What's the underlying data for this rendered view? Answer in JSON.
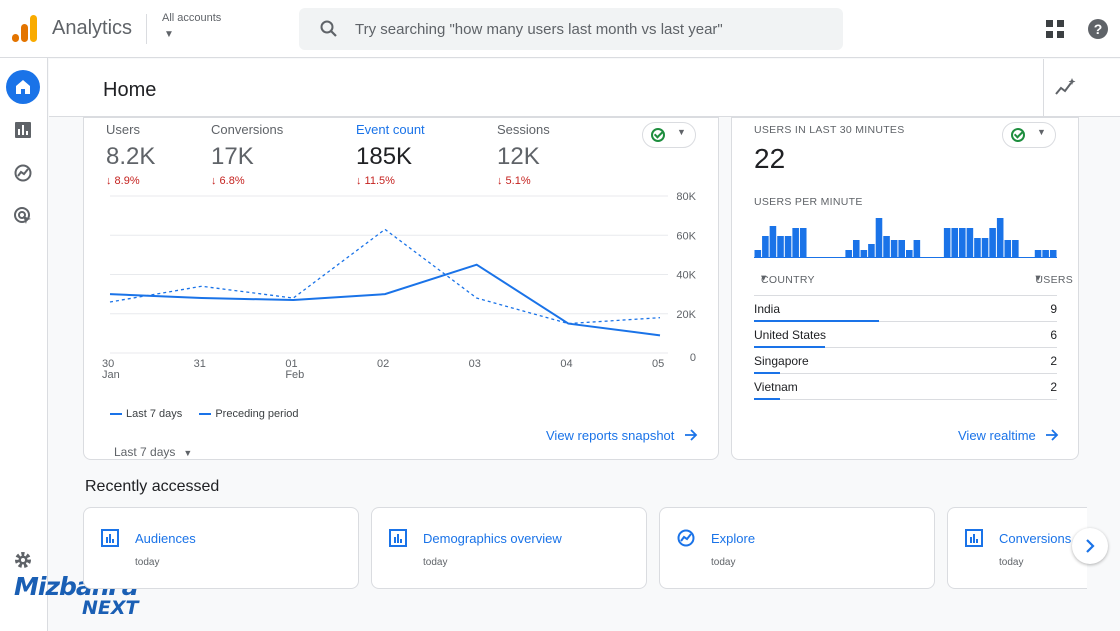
{
  "app": {
    "name": "Analytics",
    "account_label": "All accounts"
  },
  "search": {
    "placeholder": "Try searching \"how many users last month vs last year\""
  },
  "page": {
    "title": "Home"
  },
  "metrics": [
    {
      "label": "Users",
      "value": "8.2K",
      "change": "↓ 8.9%"
    },
    {
      "label": "Conversions",
      "value": "17K",
      "change": "↓ 6.8%"
    },
    {
      "label": "Event count",
      "value": "185K",
      "change": "↓ 11.5%"
    },
    {
      "label": "Sessions",
      "value": "12K",
      "change": "↓ 5.1%"
    }
  ],
  "chart_data": {
    "type": "line",
    "x": [
      "30 Jan",
      "31",
      "01 Feb",
      "02",
      "03",
      "04",
      "05"
    ],
    "x_tick_labels": [
      {
        "day": "30",
        "month": "Jan"
      },
      {
        "day": "31",
        "month": ""
      },
      {
        "day": "01",
        "month": "Feb"
      },
      {
        "day": "02",
        "month": ""
      },
      {
        "day": "03",
        "month": ""
      },
      {
        "day": "04",
        "month": ""
      },
      {
        "day": "05",
        "month": ""
      }
    ],
    "y_ticks": [
      "80K",
      "60K",
      "40K",
      "20K",
      "0"
    ],
    "ylim": [
      0,
      80000
    ],
    "series": [
      {
        "name": "Last 7 days",
        "style": "solid",
        "values": [
          30000,
          28000,
          27000,
          30000,
          45000,
          15000,
          9000
        ]
      },
      {
        "name": "Preceding period",
        "style": "dashed",
        "values": [
          26000,
          34000,
          28000,
          63000,
          28000,
          15000,
          18000
        ]
      }
    ],
    "grid": true,
    "legend_position": "bottom-left",
    "color": "#1a73e8"
  },
  "main_card": {
    "range": "Last 7 days",
    "link": "View reports snapshot"
  },
  "realtime": {
    "label": "USERS IN LAST 30 MINUTES",
    "value": "22",
    "per_minute_label": "USERS PER MINUTE",
    "per_minute_bars": [
      0.2,
      0.55,
      0.8,
      0.55,
      0.55,
      0.75,
      0.75,
      0,
      0,
      0,
      0,
      0,
      0.2,
      0.45,
      0.2,
      0.35,
      1,
      0.55,
      0.45,
      0.45,
      0.2,
      0.45,
      0,
      0,
      0,
      0.75,
      0.75,
      0.75,
      0.75,
      0.5,
      0.5,
      0.75,
      1,
      0.45,
      0.45,
      0,
      0,
      0.2,
      0.2,
      0.2
    ],
    "country_header": "COUNTRY",
    "users_header": "USERS",
    "rows": [
      {
        "country": "India",
        "users": "9",
        "share": 1.0
      },
      {
        "country": "United States",
        "users": "6",
        "share": 0.57
      },
      {
        "country": "Singapore",
        "users": "2",
        "share": 0.21
      },
      {
        "country": "Vietnam",
        "users": "2",
        "share": 0.21
      }
    ],
    "link": "View realtime"
  },
  "recent": {
    "title": "Recently accessed",
    "items": [
      {
        "title": "Audiences",
        "sub": "today",
        "icon": "report-icon"
      },
      {
        "title": "Demographics overview",
        "sub": "today",
        "icon": "report-icon"
      },
      {
        "title": "Explore",
        "sub": "today",
        "icon": "explore-icon"
      },
      {
        "title": "Conversions",
        "sub": "today",
        "icon": "report-icon"
      }
    ]
  },
  "watermark": {
    "line1": "MizbanFa",
    "line2": "NEXT"
  },
  "colors": {
    "accent": "#1a73e8",
    "negative": "#c5221f",
    "positive": "#1e8e3e"
  }
}
